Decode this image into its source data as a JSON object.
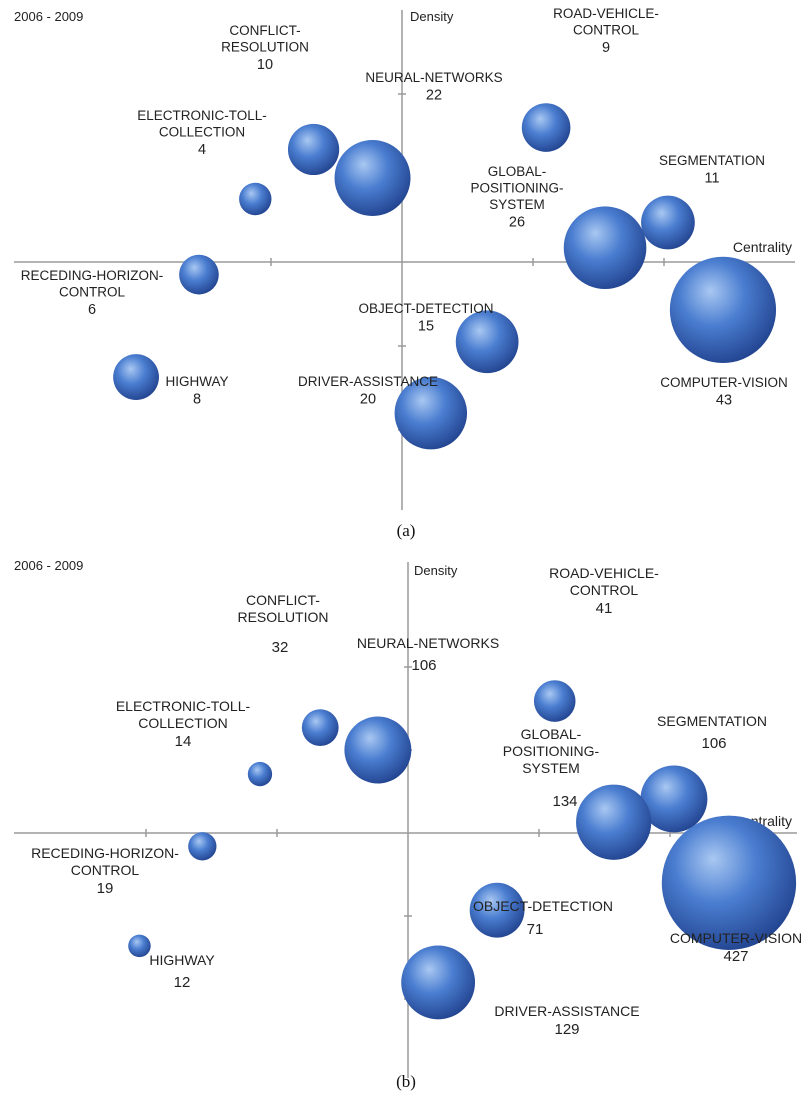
{
  "colors": {
    "bubble_light": "#a9c8f2",
    "bubble_mid": "#4a7dd0",
    "bubble_dark": "#1f3f8a",
    "axis": "#9a9a9a"
  },
  "chart_data": [
    {
      "type": "scatter",
      "panel_label": "2006 - 2009",
      "caption": "(a)",
      "xlabel": "Centrality",
      "ylabel": "Density",
      "points": [
        {
          "name": "ROAD-VEHICLE-CONTROL",
          "label_lines": [
            "ROAD-VEHICLE-",
            "CONTROL"
          ],
          "value": "9",
          "x": 1.1,
          "y": 1.6
        },
        {
          "name": "CONFLICT-RESOLUTION",
          "label_lines": [
            "CONFLICT-",
            "RESOLUTION"
          ],
          "value": "10",
          "x": -0.675,
          "y": 1.34
        },
        {
          "name": "NEURAL-NETWORKS",
          "label_lines": [
            "NEURAL-NETWORKS"
          ],
          "value": "22",
          "x": -0.225,
          "y": 1.0
        },
        {
          "name": "ELECTRONIC-TOLL-COLLECTION",
          "label_lines": [
            "ELECTRONIC-TOLL-",
            "COLLECTION"
          ],
          "value": "4",
          "x": -1.12,
          "y": 0.75
        },
        {
          "name": "SEGMENTATION",
          "label_lines": [
            "SEGMENTATION"
          ],
          "value": "11",
          "x": 2.03,
          "y": 0.47
        },
        {
          "name": "GLOBAL-POSITIONING-SYSTEM",
          "label_lines": [
            "GLOBAL-",
            "POSITIONING-",
            "SYSTEM"
          ],
          "value": "26",
          "x": 1.55,
          "y": 0.17
        },
        {
          "name": "RECEDING-HORIZON-CONTROL",
          "label_lines": [
            "RECEDING-HORIZON-",
            "CONTROL"
          ],
          "value": "6",
          "x": -1.55,
          "y": -0.15
        },
        {
          "name": "COMPUTER-VISION",
          "label_lines": [
            "COMPUTER-VISION"
          ],
          "value": "43",
          "x": 2.45,
          "y": -0.57
        },
        {
          "name": "OBJECT-DETECTION",
          "label_lines": [
            "OBJECT-DETECTION"
          ],
          "value": "15",
          "x": 0.65,
          "y": -0.95
        },
        {
          "name": "HIGHWAY",
          "label_lines": [
            "HIGHWAY"
          ],
          "value": "8",
          "x": -2.03,
          "y": -1.37
        },
        {
          "name": "DRIVER-ASSISTANCE",
          "label_lines": [
            "DRIVER-ASSISTANCE"
          ],
          "value": "20",
          "x": 0.22,
          "y": -1.8
        }
      ]
    },
    {
      "type": "scatter",
      "panel_label": "2006 - 2009",
      "caption": "(b)",
      "xlabel": "Centrality",
      "ylabel": "Density",
      "points": [
        {
          "name": "ROAD-VEHICLE-CONTROL",
          "label_lines": [
            "ROAD-VEHICLE-",
            "CONTROL"
          ],
          "value": "41",
          "x": 1.12,
          "y": 1.59
        },
        {
          "name": "CONFLICT-RESOLUTION",
          "label_lines": [
            "CONFLICT-",
            "RESOLUTION"
          ],
          "value": "32",
          "x": -0.67,
          "y": 1.27
        },
        {
          "name": "NEURAL-NETWORKS",
          "label_lines": [
            "NEURAL-NETWORKS"
          ],
          "value": "106",
          "x": -0.23,
          "y": 1.0
        },
        {
          "name": "ELECTRONIC-TOLL-COLLECTION",
          "label_lines": [
            "ELECTRONIC-TOLL-",
            "COLLECTION"
          ],
          "value": "14",
          "x": -1.13,
          "y": 0.71
        },
        {
          "name": "SEGMENTATION",
          "label_lines": [
            "SEGMENTATION"
          ],
          "value": "106",
          "x": 2.03,
          "y": 0.41
        },
        {
          "name": "GLOBAL-POSITIONING-SYSTEM",
          "label_lines": [
            "GLOBAL-",
            "POSITIONING-",
            "SYSTEM"
          ],
          "value": "134",
          "x": 1.57,
          "y": 0.13
        },
        {
          "name": "RECEDING-HORIZON-CONTROL",
          "label_lines": [
            "RECEDING-HORIZON-",
            "CONTROL"
          ],
          "value": "19",
          "x": -1.57,
          "y": -0.16
        },
        {
          "name": "COMPUTER-VISION",
          "label_lines": [
            "COMPUTER-VISION"
          ],
          "value": "427",
          "x": 2.45,
          "y": -0.6
        },
        {
          "name": "OBJECT-DETECTION",
          "label_lines": [
            "OBJECT-DETECTION"
          ],
          "value": "71",
          "x": 0.68,
          "y": -0.93
        },
        {
          "name": "HIGHWAY",
          "label_lines": [
            "HIGHWAY"
          ],
          "value": "12",
          "x": -2.05,
          "y": -1.36
        },
        {
          "name": "DRIVER-ASSISTANCE",
          "label_lines": [
            "DRIVER-ASSISTANCE"
          ],
          "value": "129",
          "x": 0.23,
          "y": -1.8
        }
      ]
    }
  ]
}
